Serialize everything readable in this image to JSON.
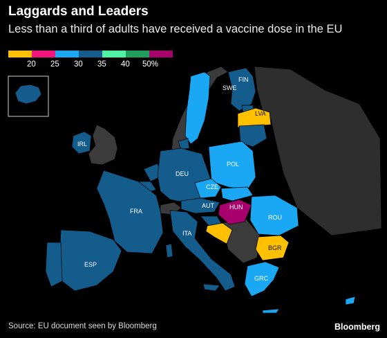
{
  "header": {
    "title": "Laggards and Leaders",
    "subtitle": "Less than a third of adults have received a vaccine dose in the EU"
  },
  "legend": {
    "colors": [
      "#ffc000",
      "#f5137e",
      "#1aa8f5",
      "#135c8c",
      "#4ef2a3",
      "#1f9f5c",
      "#a8006d"
    ],
    "tick_labels": [
      "20",
      "25",
      "30",
      "35",
      "40",
      "50%"
    ]
  },
  "map": {
    "countries": [
      {
        "code": "SWE",
        "label": "SWE",
        "band": "30"
      },
      {
        "code": "FIN",
        "label": "FIN",
        "band": "35"
      },
      {
        "code": "LVA",
        "label": "LVA",
        "band": "20"
      },
      {
        "code": "IRL",
        "label": "IRL",
        "band": "35"
      },
      {
        "code": "DEU",
        "label": "DEU",
        "band": "35"
      },
      {
        "code": "POL",
        "label": "POL",
        "band": "30"
      },
      {
        "code": "CZE",
        "label": "CZE",
        "band": "30"
      },
      {
        "code": "FRA",
        "label": "FRA",
        "band": "35"
      },
      {
        "code": "AUT",
        "label": "AUT",
        "band": "35"
      },
      {
        "code": "HUN",
        "label": "HUN",
        "band": "50%"
      },
      {
        "code": "ROU",
        "label": "ROU",
        "band": "30"
      },
      {
        "code": "ITA",
        "label": "ITA",
        "band": "35"
      },
      {
        "code": "BGR",
        "label": "BGR",
        "band": "20"
      },
      {
        "code": "ESP",
        "label": "ESP",
        "band": "35"
      },
      {
        "code": "GRC",
        "label": "GRC",
        "band": "30"
      }
    ]
  },
  "footer": {
    "source": "Source: EU document seen by Bloomberg",
    "brand": "Bloomberg"
  }
}
